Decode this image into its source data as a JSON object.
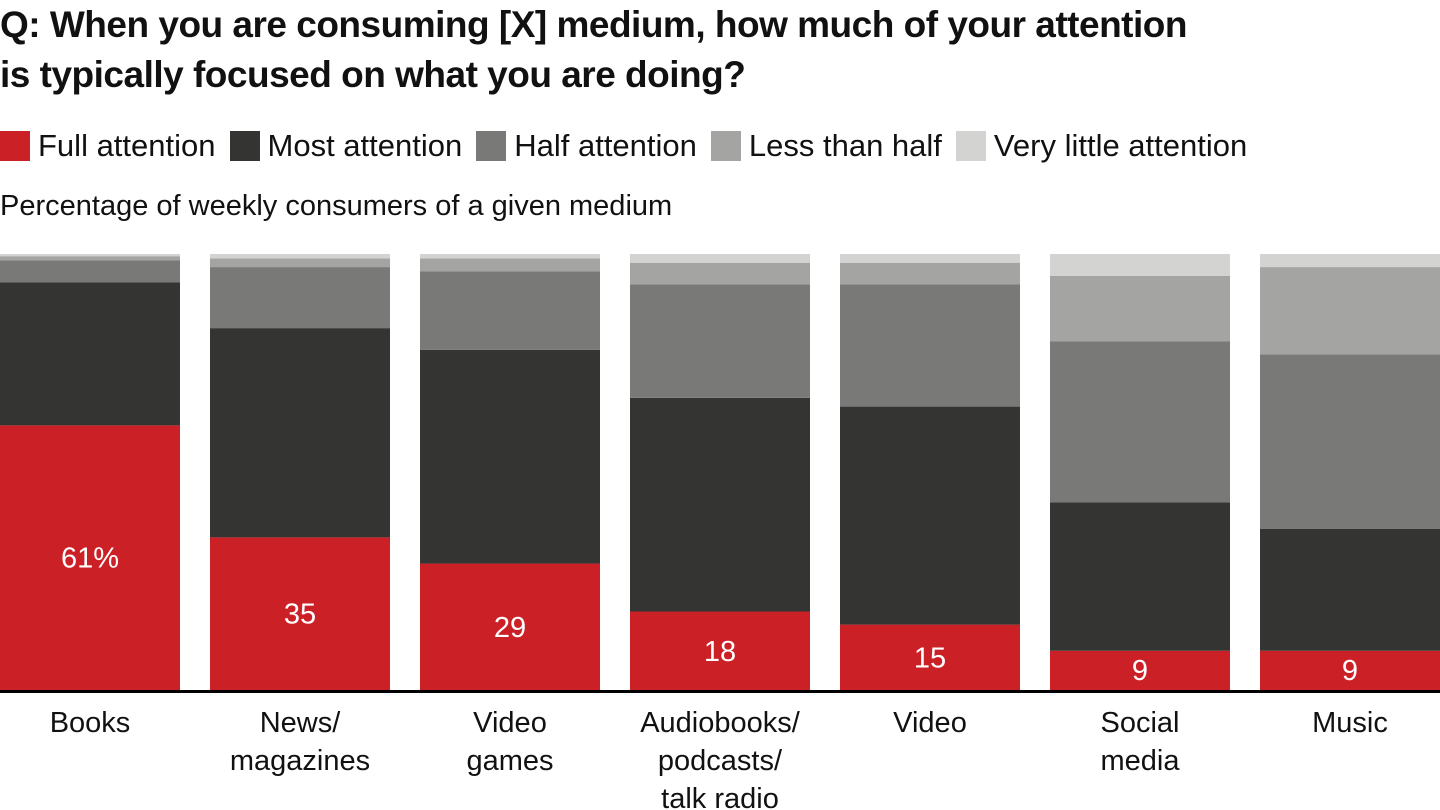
{
  "title": {
    "line1": "Q: When you are consuming [X] medium, how much of your attention",
    "line2": "is typically focused on what you are doing?"
  },
  "legend": [
    {
      "label": "Full attention",
      "color": "#cc2027"
    },
    {
      "label": "Most attention",
      "color": "#343432"
    },
    {
      "label": "Half attention",
      "color": "#797977"
    },
    {
      "label": "Less than half",
      "color": "#a4a4a2"
    },
    {
      "label": "Very little attention",
      "color": "#d3d3d1"
    }
  ],
  "subtitle": "Percentage of weekly consumers of a given medium",
  "chart_data": {
    "type": "bar",
    "stacked": true,
    "title": "Q: When you are consuming [X] medium, how much of your attention is typically focused on what you are doing?",
    "subtitle": "Percentage of weekly consumers of a given medium",
    "xlabel": "",
    "ylabel": "",
    "ylim": [
      0,
      100
    ],
    "grid": false,
    "legend_position": "top-left",
    "categories": [
      [
        "Books"
      ],
      [
        "News/",
        "magazines"
      ],
      [
        "Video",
        "games"
      ],
      [
        "Audiobooks/",
        "podcasts/",
        "talk radio"
      ],
      [
        "Video"
      ],
      [
        "Social",
        "media"
      ],
      [
        "Music"
      ]
    ],
    "series": [
      {
        "name": "Full attention",
        "color": "#cc2027",
        "values": [
          61,
          35,
          29,
          18,
          15,
          9,
          9
        ]
      },
      {
        "name": "Most attention",
        "color": "#343432",
        "values": [
          33,
          48,
          49,
          49,
          50,
          34,
          28
        ]
      },
      {
        "name": "Half attention",
        "color": "#797977",
        "values": [
          5,
          14,
          18,
          26,
          28,
          37,
          40
        ]
      },
      {
        "name": "Less than half",
        "color": "#a4a4a2",
        "values": [
          1,
          2,
          3,
          5,
          5,
          15,
          20
        ]
      },
      {
        "name": "Very little attention",
        "color": "#d3d3d1",
        "values": [
          0.5,
          1,
          1,
          2,
          2,
          5,
          3
        ]
      }
    ],
    "data_labels": [
      "61%",
      "35",
      "29",
      "18",
      "15",
      "9",
      "9"
    ]
  }
}
